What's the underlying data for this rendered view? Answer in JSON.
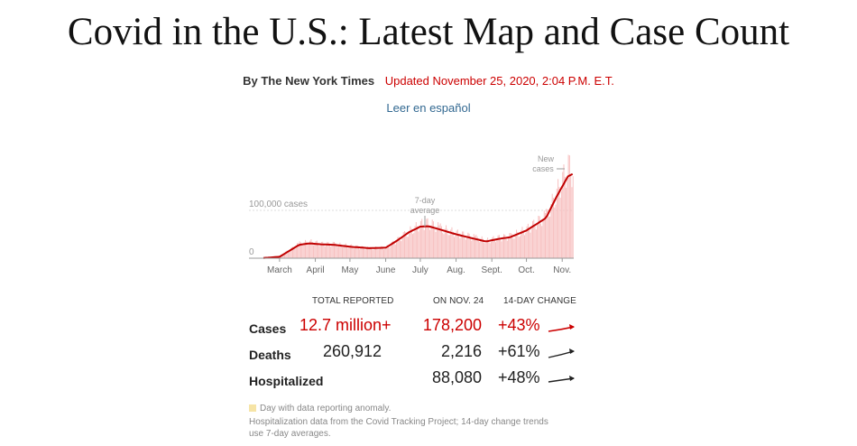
{
  "header": {
    "title": "Covid in the U.S.: Latest Map and Case Count",
    "byline": "By The New York Times",
    "updated": "Updated November 25, 2020, 2:04 P.M. E.T.",
    "spanish_link": "Leer en español"
  },
  "chart_data": {
    "type": "bar",
    "title": "",
    "xlabel": "",
    "ylabel": "",
    "x_tick_labels": [
      "March",
      "April",
      "May",
      "June",
      "July",
      "Aug.",
      "Sept.",
      "Oct.",
      "Nov."
    ],
    "y_tick_labels": [
      "100,000 cases",
      "0"
    ],
    "ylim": [
      0,
      200000
    ],
    "grid": false,
    "annotations": [
      "New cases",
      "7-day average"
    ],
    "series": [
      {
        "name": "New cases",
        "style": "bars",
        "x": [
          "2020-03-01",
          "2020-03-15",
          "2020-04-01",
          "2020-04-10",
          "2020-04-20",
          "2020-05-01",
          "2020-05-15",
          "2020-06-01",
          "2020-06-15",
          "2020-06-25",
          "2020-07-05",
          "2020-07-15",
          "2020-07-22",
          "2020-08-01",
          "2020-08-15",
          "2020-09-01",
          "2020-09-10",
          "2020-09-20",
          "2020-10-01",
          "2020-10-15",
          "2020-11-01",
          "2020-11-10",
          "2020-11-20",
          "2020-11-24"
        ],
        "values": [
          1000,
          5000,
          30000,
          34000,
          30000,
          29000,
          25000,
          20000,
          22000,
          38000,
          55000,
          70000,
          73000,
          62000,
          52000,
          42000,
          36000,
          42000,
          45000,
          60000,
          88000,
          135000,
          190000,
          178200
        ]
      },
      {
        "name": "7-day average",
        "style": "line",
        "x": [
          "2020-03-01",
          "2020-03-15",
          "2020-04-01",
          "2020-04-10",
          "2020-04-20",
          "2020-05-01",
          "2020-05-15",
          "2020-06-01",
          "2020-06-15",
          "2020-06-25",
          "2020-07-05",
          "2020-07-15",
          "2020-07-22",
          "2020-08-01",
          "2020-08-15",
          "2020-09-01",
          "2020-09-10",
          "2020-09-20",
          "2020-10-01",
          "2020-10-15",
          "2020-11-01",
          "2020-11-10",
          "2020-11-20",
          "2020-11-24"
        ],
        "values": [
          500,
          3000,
          28000,
          31000,
          29000,
          28000,
          24000,
          21000,
          22000,
          37000,
          54000,
          66000,
          67000,
          60000,
          50000,
          40000,
          35000,
          40000,
          44000,
          58000,
          84000,
          128000,
          171000,
          176000
        ]
      }
    ]
  },
  "table": {
    "headers": {
      "total": "TOTAL REPORTED",
      "day": "ON NOV. 24",
      "change": "14-DAY CHANGE"
    },
    "rows": [
      {
        "label": "Cases",
        "total": "12.7 million+",
        "day": "178,200",
        "change": "+43%"
      },
      {
        "label": "Deaths",
        "total": "260,912",
        "day": "2,216",
        "change": "+61%"
      },
      {
        "label": "Hospitalized",
        "total": "",
        "day": "88,080",
        "change": "+48%"
      }
    ]
  },
  "notes": {
    "anomaly": "Day with data reporting anomaly.",
    "source": "Hospitalization data from the Covid Tracking Project; 14-day change trends",
    "source2": "use 7-day averages."
  },
  "colors": {
    "accent": "#c00000",
    "bars": "#f7c1c1",
    "link": "#326891"
  }
}
